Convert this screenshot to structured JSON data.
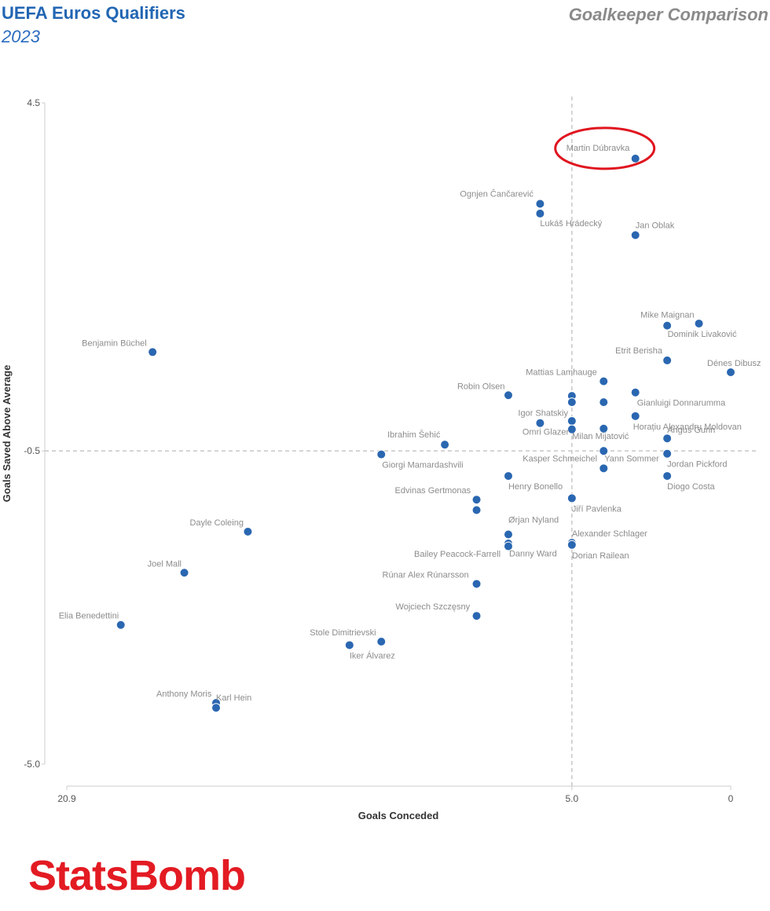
{
  "header": {
    "title": "UEFA Euros Qualifiers",
    "year": "2023",
    "subtitle": "Goalkeeper Comparison"
  },
  "logo": {
    "text": "StatsBomb",
    "color": "#e31b23"
  },
  "chart_data": {
    "type": "scatter",
    "title": "Goalkeeper Comparison",
    "xlabel": "Goals Conceded",
    "ylabel": "Goals Saved Above Average",
    "x_reversed": true,
    "xlim": [
      20.9,
      0
    ],
    "ylim": [
      -5.0,
      4.5
    ],
    "x_tick_labels": [
      "20.9",
      "5.0",
      "0"
    ],
    "x_ticks": [
      20.9,
      5.0,
      0
    ],
    "y_tick_labels": [
      "4.5",
      "-0.5",
      "-5.0"
    ],
    "y_ticks": [
      4.5,
      -0.5,
      -5.0
    ],
    "reference_lines": {
      "x": 5.0,
      "y": -0.5
    },
    "highlight": "Martin Dúbravka",
    "point_color": "#2a67b1",
    "highlight_color": "#e0151f",
    "points": [
      {
        "name": "Martin Dúbravka",
        "x": 3.0,
        "y": 3.7
      },
      {
        "name": "Ognjen Čančarević",
        "x": 6.0,
        "y": 3.05
      },
      {
        "name": "Lukáš Hrádecký",
        "x": 6.0,
        "y": 2.91
      },
      {
        "name": "Jan Oblak",
        "x": 3.0,
        "y": 2.6
      },
      {
        "name": "Mike Maignan",
        "x": 2.0,
        "y": 1.3
      },
      {
        "name": "Dominik Livaković",
        "x": 1.0,
        "y": 1.33
      },
      {
        "name": "Benjamin Büchel",
        "x": 18.2,
        "y": 0.92
      },
      {
        "name": "Etrit Berisha",
        "x": 2.0,
        "y": 0.8
      },
      {
        "name": "Dénes Dibusz",
        "x": 0.0,
        "y": 0.63
      },
      {
        "name": "Mattias Lamhauge",
        "x": 4.0,
        "y": 0.5
      },
      {
        "name": "Robin Olsen",
        "x": 7.0,
        "y": 0.3
      },
      {
        "name": "",
        "x": 5.0,
        "y": 0.29
      },
      {
        "name": "",
        "x": 5.0,
        "y": 0.2
      },
      {
        "name": "",
        "x": 4.0,
        "y": 0.2
      },
      {
        "name": "Gianluigi Donnarumma",
        "x": 3.0,
        "y": 0.34
      },
      {
        "name": "Igor Shatskiy",
        "x": 6.0,
        "y": -0.1
      },
      {
        "name": "",
        "x": 5.0,
        "y": -0.07
      },
      {
        "name": "Horațiu Alexandru Moldovan",
        "x": 3.0,
        "y": 0.0
      },
      {
        "name": "Omri Glazer",
        "x": 5.0,
        "y": -0.19
      },
      {
        "name": "",
        "x": 4.0,
        "y": -0.18
      },
      {
        "name": "Milan Mijatović",
        "x": 4.0,
        "y": -0.5
      },
      {
        "name": "Angus Gunn",
        "x": 2.0,
        "y": -0.32
      },
      {
        "name": "Ibrahim Šehić",
        "x": 9.0,
        "y": -0.41
      },
      {
        "name": "Giorgi Mamardashvili",
        "x": 11.0,
        "y": -0.55
      },
      {
        "name": "Jordan Pickford",
        "x": 2.0,
        "y": -0.54
      },
      {
        "name": "Kasper Schmeichel",
        "x": 4.0,
        "y": -0.75
      },
      {
        "name": "Yann Sommer",
        "x": 4.0,
        "y": -0.75
      },
      {
        "name": "Henry Bonello",
        "x": 7.0,
        "y": -0.86
      },
      {
        "name": "Diogo Costa",
        "x": 2.0,
        "y": -0.86
      },
      {
        "name": "Edvinas Gertmonas",
        "x": 8.0,
        "y": -1.2
      },
      {
        "name": "",
        "x": 8.0,
        "y": -1.35
      },
      {
        "name": "Jiří Pavlenka",
        "x": 5.0,
        "y": -1.18
      },
      {
        "name": "Dayle Coleing",
        "x": 15.2,
        "y": -1.66
      },
      {
        "name": "Ørjan Nyland",
        "x": 7.0,
        "y": -1.7
      },
      {
        "name": "Bailey Peacock-Farrell",
        "x": 7.0,
        "y": -1.83
      },
      {
        "name": "Danny Ward",
        "x": 7.0,
        "y": -1.87
      },
      {
        "name": "Alexander Schlager",
        "x": 5.0,
        "y": -1.82
      },
      {
        "name": "Dorian Railean",
        "x": 5.0,
        "y": -1.85
      },
      {
        "name": "Joel Mall",
        "x": 17.2,
        "y": -2.25
      },
      {
        "name": "Rúnar Alex Rúnarsson",
        "x": 8.0,
        "y": -2.41
      },
      {
        "name": "Wojciech Szczęsny",
        "x": 8.0,
        "y": -2.87
      },
      {
        "name": "Elia Benedettini",
        "x": 19.2,
        "y": -3.0
      },
      {
        "name": "Stole Dimitrievski",
        "x": 11.0,
        "y": -3.24
      },
      {
        "name": "Iker Álvarez",
        "x": 12.0,
        "y": -3.29
      },
      {
        "name": "Anthony Moris",
        "x": 16.2,
        "y": -4.12
      },
      {
        "name": "Karl Hein",
        "x": 16.2,
        "y": -4.19
      }
    ]
  }
}
